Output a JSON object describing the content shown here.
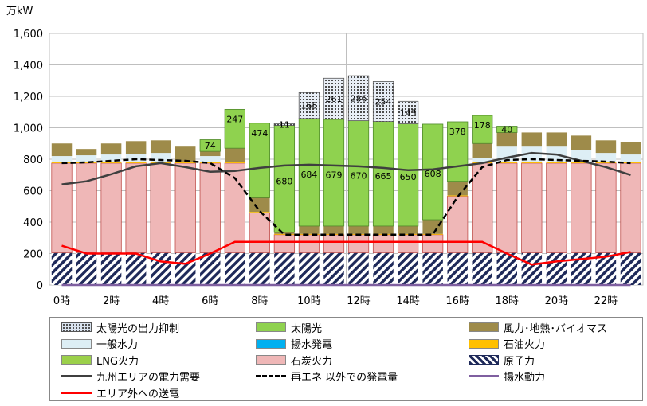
{
  "chart_data": {
    "type": "stacked-bar-line",
    "unit_label": "万kW",
    "ylim": [
      0,
      1600
    ],
    "y_ticks": [
      "0",
      "200",
      "400",
      "600",
      "800",
      "1,000",
      "1,200",
      "1,400",
      "1,600"
    ],
    "x_tick_labels": [
      "0時",
      "2時",
      "4時",
      "6時",
      "8時",
      "10時",
      "12時",
      "14時",
      "16時",
      "18時",
      "20時",
      "22時"
    ],
    "hours": [
      0,
      1,
      2,
      3,
      4,
      5,
      6,
      7,
      8,
      9,
      10,
      11,
      12,
      13,
      14,
      15,
      16,
      17,
      18,
      19,
      20,
      21,
      22,
      23
    ],
    "stack_series": [
      {
        "key": "nuclear",
        "name": "原子力",
        "color": "#1f2a5a",
        "values": [
          205,
          205,
          205,
          205,
          205,
          205,
          205,
          205,
          205,
          205,
          205,
          205,
          205,
          205,
          205,
          205,
          205,
          205,
          205,
          205,
          205,
          205,
          205,
          205
        ]
      },
      {
        "key": "coal",
        "name": "石炭火力",
        "color": "#efb7b7",
        "values": [
          570,
          570,
          570,
          570,
          570,
          570,
          570,
          570,
          255,
          115,
          115,
          115,
          115,
          115,
          115,
          115,
          360,
          570,
          570,
          570,
          570,
          570,
          570,
          570
        ]
      },
      {
        "key": "oil",
        "name": "石油火力",
        "color": "#ffc000",
        "values": [
          5,
          5,
          5,
          5,
          5,
          5,
          5,
          5,
          5,
          5,
          5,
          5,
          5,
          5,
          5,
          5,
          5,
          5,
          5,
          5,
          5,
          5,
          5,
          5
        ]
      },
      {
        "key": "lng",
        "name": "LNG火力",
        "color": "#9bd04a",
        "values": [
          0,
          0,
          0,
          0,
          0,
          0,
          0,
          0,
          0,
          0,
          0,
          0,
          0,
          0,
          0,
          0,
          0,
          0,
          0,
          0,
          0,
          0,
          0,
          0
        ]
      },
      {
        "key": "pumped",
        "name": "揚水発電",
        "color": "#00b0f0",
        "values": [
          0,
          0,
          0,
          0,
          0,
          0,
          0,
          0,
          0,
          0,
          0,
          0,
          0,
          0,
          0,
          0,
          0,
          0,
          0,
          0,
          0,
          0,
          0,
          0
        ]
      },
      {
        "key": "hydro",
        "name": "一般水力",
        "color": "#ddeef5",
        "values": [
          40,
          45,
          50,
          55,
          60,
          0,
          40,
          0,
          0,
          0,
          0,
          0,
          0,
          0,
          0,
          0,
          0,
          30,
          100,
          100,
          100,
          80,
          60,
          50
        ]
      },
      {
        "key": "wind_geo",
        "name": "風力･地熱･バイオマス",
        "color": "#9e8b4a",
        "values": [
          80,
          40,
          70,
          80,
          80,
          100,
          30,
          90,
          90,
          10,
          50,
          50,
          50,
          50,
          50,
          90,
          90,
          90,
          90,
          90,
          90,
          90,
          80,
          80
        ]
      },
      {
        "key": "solar",
        "name": "太陽光",
        "color": "#8fd24f",
        "values": [
          0,
          0,
          0,
          0,
          0,
          0,
          74,
          247,
          474,
          680,
          684,
          679,
          670,
          665,
          650,
          608,
          378,
          178,
          40,
          0,
          0,
          0,
          0,
          0
        ]
      },
      {
        "key": "curtail",
        "name": "太陽光の出力抑制",
        "color": "#d9e3ef",
        "values": [
          0,
          0,
          0,
          0,
          0,
          0,
          0,
          0,
          0,
          11,
          165,
          261,
          286,
          254,
          143,
          0,
          0,
          0,
          0,
          0,
          0,
          0,
          0,
          0
        ]
      }
    ],
    "bar_labels": {
      "solar": [
        "",
        "",
        "",
        "",
        "",
        "",
        "74",
        "247",
        "474",
        "680",
        "684",
        "679",
        "670",
        "665",
        "650",
        "608",
        "378",
        "178",
        "40",
        "",
        "",
        "",
        "",
        ""
      ],
      "curtail": [
        "",
        "",
        "",
        "",
        "",
        "",
        "",
        "",
        "",
        "11",
        "165",
        "261",
        "286",
        "254",
        "143",
        "",
        "",
        "",
        "",
        "",
        "",
        "",
        "",
        ""
      ]
    },
    "line_series": [
      {
        "key": "demand",
        "name": "九州エリアの電力需要",
        "color": "#3f3f3f",
        "dash": false,
        "values": [
          640,
          660,
          705,
          755,
          775,
          750,
          720,
          725,
          745,
          760,
          765,
          760,
          755,
          745,
          730,
          735,
          755,
          775,
          810,
          840,
          830,
          790,
          750,
          700
        ]
      },
      {
        "key": "non_renew",
        "name": "再エネ 以外での発電量",
        "color": "#000000",
        "dash": true,
        "values": [
          775,
          780,
          790,
          800,
          795,
          790,
          775,
          680,
          470,
          320,
          320,
          320,
          320,
          320,
          320,
          320,
          560,
          750,
          795,
          800,
          795,
          790,
          785,
          775
        ]
      },
      {
        "key": "transfer",
        "name": "エリア外への送電",
        "color": "#ff0000",
        "dash": false,
        "values": [
          250,
          200,
          200,
          200,
          150,
          135,
          200,
          275,
          275,
          275,
          275,
          275,
          275,
          275,
          275,
          275,
          275,
          275,
          200,
          130,
          150,
          165,
          180,
          210
        ]
      },
      {
        "key": "pump_power",
        "name": "揚水動力",
        "color": "#7f5fa0",
        "dash": false,
        "values": [
          0,
          0,
          0,
          0,
          0,
          0,
          0,
          0,
          0,
          0,
          0,
          0,
          0,
          0,
          0,
          0,
          0,
          0,
          0,
          0,
          0,
          0,
          0,
          0
        ]
      }
    ]
  },
  "legend": [
    {
      "name": "太陽光の出力抑制",
      "kind": "hatch-dots",
      "color": "#d9e3ef"
    },
    {
      "name": "太陽光",
      "kind": "box",
      "color": "#8fd24f"
    },
    {
      "name": "風力･地熱･バイオマス",
      "kind": "box",
      "color": "#9e8b4a"
    },
    {
      "name": "一般水力",
      "kind": "box",
      "color": "#ddeef5"
    },
    {
      "name": "揚水発電",
      "kind": "box",
      "color": "#00b0f0"
    },
    {
      "name": "石油火力",
      "kind": "box",
      "color": "#ffc000"
    },
    {
      "name": "LNG火力",
      "kind": "box",
      "color": "#9bd04a"
    },
    {
      "name": "石炭火力",
      "kind": "box",
      "color": "#efb7b7"
    },
    {
      "name": "原子力",
      "kind": "hatch-diag",
      "color": "#1f2a5a"
    },
    {
      "name": "九州エリアの電力需要",
      "kind": "line",
      "color": "#3f3f3f"
    },
    {
      "name": "再エネ 以外での発電量",
      "kind": "dash",
      "color": "#000000"
    },
    {
      "name": "揚水動力",
      "kind": "line",
      "color": "#7f5fa0"
    },
    {
      "name": "エリア外への送電",
      "kind": "line",
      "color": "#ff0000"
    }
  ]
}
